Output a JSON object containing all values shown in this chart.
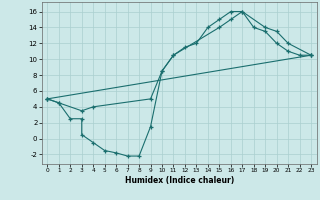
{
  "xlabel": "Humidex (Indice chaleur)",
  "background_color": "#cce8e8",
  "grid_color": "#aacfcf",
  "line_color": "#1a6e6e",
  "xlim": [
    -0.5,
    23.5
  ],
  "ylim": [
    -3.2,
    17.2
  ],
  "xticks": [
    0,
    1,
    2,
    3,
    4,
    5,
    6,
    7,
    8,
    9,
    10,
    11,
    12,
    13,
    14,
    15,
    16,
    17,
    18,
    19,
    20,
    21,
    22,
    23
  ],
  "yticks": [
    -2,
    0,
    2,
    4,
    6,
    8,
    10,
    12,
    14,
    16
  ],
  "lines": [
    {
      "x": [
        0,
        1,
        2,
        3,
        3,
        4,
        5,
        6,
        7,
        8,
        9,
        10,
        11,
        12,
        13,
        14,
        15,
        16,
        17,
        18,
        19,
        20,
        21,
        22,
        23
      ],
      "y": [
        5,
        4.5,
        2.5,
        2.5,
        0.5,
        -0.5,
        -1.5,
        -1.8,
        -2.2,
        -2.2,
        1.5,
        8.5,
        10.5,
        11.5,
        12,
        14,
        15,
        16,
        16,
        14,
        13.5,
        12,
        11,
        10.5,
        10.5
      ]
    },
    {
      "x": [
        0,
        1,
        3,
        4,
        9,
        10,
        11,
        15,
        16,
        17,
        19,
        20,
        21,
        23
      ],
      "y": [
        5,
        4.5,
        3.5,
        4,
        5,
        8.5,
        10.5,
        14,
        15,
        16,
        14,
        13.5,
        12,
        10.5
      ]
    },
    {
      "x": [
        0,
        23
      ],
      "y": [
        5,
        10.5
      ]
    }
  ]
}
